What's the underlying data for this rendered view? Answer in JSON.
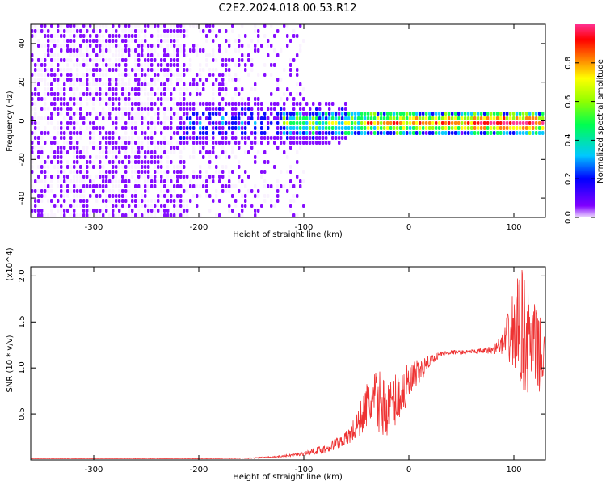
{
  "title": "C2E2.2024.018.00.53.R12",
  "chart_data": [
    {
      "type": "heatmap",
      "xlabel": "Height of straight line (km)",
      "ylabel": "Frequency (Hz)",
      "xlim": [
        -360,
        130
      ],
      "ylim": [
        -50,
        50
      ],
      "x_ticks": [
        -300,
        -200,
        -100,
        0,
        100
      ],
      "y_ticks": [
        -40,
        -20,
        0,
        20,
        40
      ],
      "colorbar": {
        "label": "Normalized spectral amplitude",
        "range": [
          0,
          1
        ],
        "ticks": [
          "0.0",
          "0.2",
          "0.4",
          "0.6",
          "0.8"
        ],
        "colors": [
          "#f0ddff",
          "#8000ff",
          "#0000ff",
          "#00c8ff",
          "#00ff50",
          "#90ff00",
          "#ffff00",
          "#ff8000",
          "#ff0000",
          "#ff3090"
        ]
      },
      "features": [
        {
          "x_range": [
            -360,
            -100
          ],
          "freq_range": [
            -50,
            50
          ],
          "amplitude": 0.1,
          "description_key": "broadband noise"
        },
        {
          "x_range": [
            -100,
            130
          ],
          "freq_center": 0,
          "freq_halfwidth": 3,
          "amplitude": 0.9
        }
      ]
    },
    {
      "type": "line",
      "xlabel": "Height of straight line (km)",
      "ylabel": "SNR (10 * v/v)",
      "y_multiplier": "(x10^4)",
      "xlim": [
        -360,
        130
      ],
      "ylim": [
        0,
        21000
      ],
      "x_ticks": [
        -300,
        -200,
        -100,
        0,
        100
      ],
      "y_ticks": [
        5000,
        10000,
        15000,
        20000
      ],
      "y_tick_labels": [
        "0.5",
        "1.0",
        "1.5",
        "2.0"
      ],
      "series": [
        {
          "color": "#ee3333",
          "x": [
            -360,
            -300,
            -200,
            -150,
            -120,
            -100,
            -80,
            -60,
            -50,
            -40,
            -30,
            -20,
            -10,
            0,
            10,
            20,
            30,
            40,
            50,
            60,
            70,
            80,
            85,
            90,
            95,
            100,
            105,
            110,
            115,
            120,
            125,
            130
          ],
          "y": [
            150,
            150,
            150,
            200,
            400,
            700,
            1200,
            2300,
            3500,
            6000,
            6500,
            5500,
            7000,
            8000,
            9500,
            10800,
            11500,
            11700,
            11700,
            11800,
            11800,
            12000,
            12300,
            12500,
            13500,
            14000,
            14500,
            14000,
            13000,
            12000,
            11500,
            11000
          ],
          "spread": [
            20,
            20,
            30,
            50,
            100,
            200,
            500,
            800,
            1500,
            2500,
            3500,
            3000,
            3000,
            2500,
            1500,
            600,
            300,
            250,
            200,
            250,
            300,
            500,
            800,
            1500,
            3000,
            5000,
            6000,
            7000,
            6000,
            5000,
            4000,
            3500
          ]
        }
      ]
    }
  ]
}
